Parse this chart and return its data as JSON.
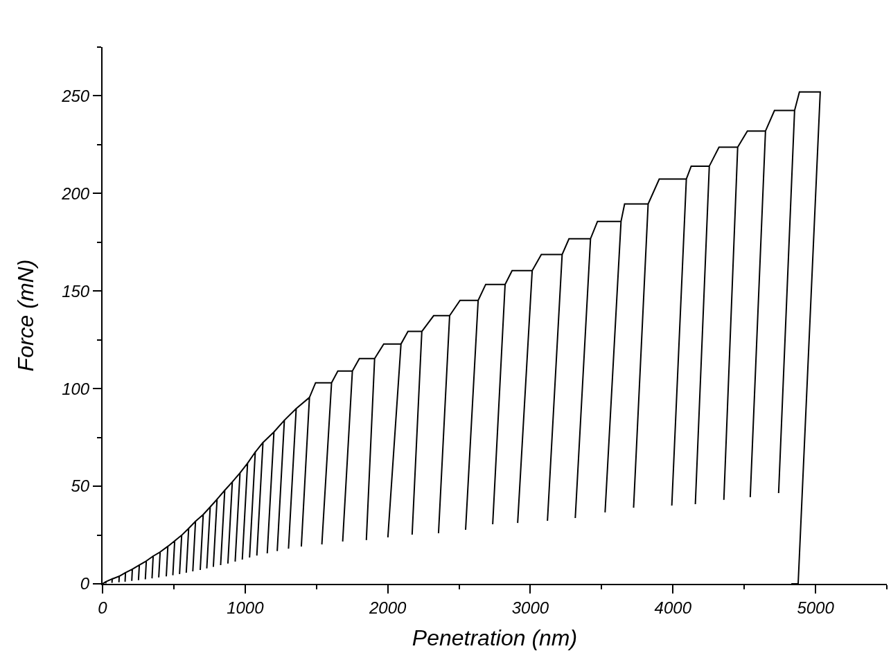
{
  "chart_data": {
    "type": "line",
    "xlabel": "Penetration (nm)",
    "ylabel": "Force (mN)",
    "xlim": [
      0,
      5500
    ],
    "ylim": [
      0,
      275
    ],
    "xticks": [
      0,
      {
        "value": 500,
        "label": null
      },
      1000,
      {
        "value": 1500,
        "label": null
      },
      2000,
      {
        "value": 2500,
        "label": null
      },
      3000,
      {
        "value": 3500,
        "label": null
      },
      4000,
      {
        "value": 4500,
        "label": null
      },
      5000,
      {
        "value": 5500,
        "label": null
      }
    ],
    "yticks": [
      0,
      {
        "value": 25,
        "label": null
      },
      50,
      {
        "value": 75,
        "label": null
      },
      100,
      {
        "value": 125,
        "label": null
      },
      150,
      {
        "value": 175,
        "label": null
      },
      200,
      {
        "value": 225,
        "label": null
      },
      250,
      {
        "value": 275,
        "label": null
      }
    ],
    "marker": "none",
    "line_style": "solid",
    "series": [
      {
        "color": "#000000",
        "x": [
          0,
          24,
          23,
          24,
          68,
          66,
          68,
          117,
          115,
          117,
          161,
          158,
          161,
          209,
          205,
          209,
          258,
          252,
          258,
          307,
          300,
          307,
          355,
          347,
          355,
          404,
          394,
          404,
          458,
          447,
          458,
          506,
          493,
          506,
          555,
          540,
          555,
          604,
          587,
          604,
          652,
          633,
          652,
          706,
          685,
          706,
          755,
          731,
          755,
          803,
          777,
          803,
          857,
          828,
          857,
          910,
          879,
          910,
          964,
          930,
          964,
          1017,
          980,
          1017,
          1071,
          1031,
          1071,
          1125,
          1082,
          1125,
          1202,
          1155,
          1202,
          1275,
          1225,
          1275,
          1358,
          1304,
          1358,
          1451,
          1394,
          1451,
          1494,
          1606,
          1538,
          1606,
          1650,
          1752,
          1684,
          1752,
          1801,
          1908,
          1850,
          1908,
          1972,
          2093,
          2001,
          2093,
          2142,
          2239,
          2171,
          2239,
          2322,
          2434,
          2356,
          2434,
          2507,
          2634,
          2546,
          2634,
          2687,
          2823,
          2736,
          2823,
          2872,
          3013,
          2911,
          3013,
          3077,
          3223,
          3120,
          3223,
          3271,
          3422,
          3315,
          3422,
          3471,
          3636,
          3524,
          3636,
          3661,
          3826,
          3724,
          3826,
          3904,
          4094,
          3992,
          4094,
          4128,
          4255,
          4157,
          4255,
          4323,
          4454,
          4357,
          4454,
          4522,
          4649,
          4542,
          4649,
          4712,
          4853,
          4741,
          4853,
          4887,
          5033,
          4878,
          4830
        ],
        "values": [
          0,
          1.1,
          0.2,
          1.1,
          2.5,
          0.5,
          2.5,
          3.9,
          0.8,
          3.9,
          5.7,
          1.1,
          5.7,
          7.5,
          1.5,
          7.5,
          9.6,
          1.9,
          9.6,
          11.7,
          2.3,
          11.7,
          14.2,
          2.8,
          14.2,
          16.3,
          3.3,
          16.3,
          19.2,
          3.8,
          19.2,
          22.0,
          4.4,
          22.0,
          24.9,
          5.0,
          24.9,
          28.4,
          5.7,
          28.4,
          32.0,
          6.4,
          32.0,
          35.5,
          7.1,
          35.5,
          39.4,
          7.9,
          39.4,
          43.3,
          8.7,
          43.3,
          47.9,
          9.6,
          47.9,
          52.2,
          10.4,
          52.2,
          56.8,
          11.4,
          56.8,
          61.8,
          12.4,
          61.8,
          67.5,
          13.5,
          67.5,
          72.4,
          14.5,
          72.4,
          77.8,
          15.6,
          77.8,
          83.8,
          16.8,
          83.8,
          89.8,
          18.0,
          89.8,
          95.5,
          19.1,
          95.5,
          103,
          103,
          20.2,
          103,
          109,
          109,
          21.7,
          109,
          115.4,
          115.4,
          22.4,
          115.4,
          122.9,
          122.9,
          23.8,
          122.9,
          129.3,
          129.3,
          25.2,
          129.3,
          137.4,
          137.4,
          25.9,
          137.4,
          145.2,
          145.2,
          27.7,
          145.2,
          153.4,
          153.4,
          30.5,
          153.4,
          160.5,
          160.5,
          31.2,
          160.5,
          168.7,
          168.7,
          32.3,
          168.7,
          176.8,
          176.8,
          33.7,
          176.8,
          185.7,
          185.7,
          36.6,
          185.7,
          194.6,
          194.6,
          39.0,
          194.6,
          207.4,
          207.4,
          40.1,
          207.4,
          214,
          214,
          40.8,
          214,
          223.7,
          223.7,
          43.0,
          223.7,
          232,
          232,
          44.4,
          232,
          242.5,
          242.5,
          46.5,
          242.5,
          252,
          252,
          0,
          0
        ]
      }
    ]
  }
}
